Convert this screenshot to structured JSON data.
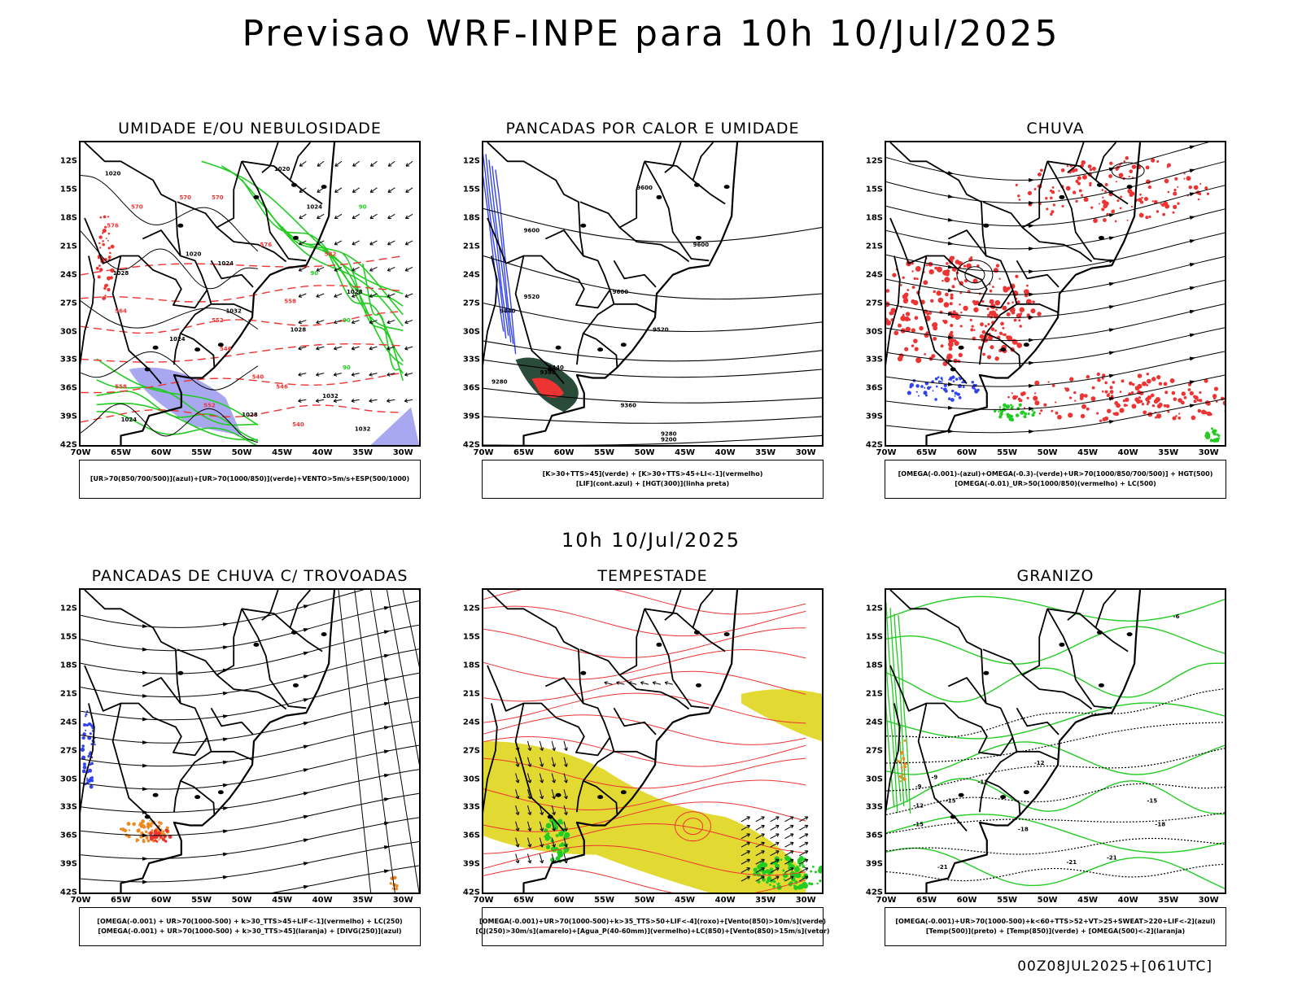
{
  "header": {
    "title": "Previsao WRF-INPE  para 10h 10/Jul/2025"
  },
  "middle": {
    "title": "10h 10/Jul/2025"
  },
  "footer": {
    "stamp": "00Z08JUL2025+[061UTC]"
  },
  "axes": {
    "lat_labels": [
      "12S",
      "15S",
      "18S",
      "21S",
      "24S",
      "27S",
      "30S",
      "33S",
      "36S",
      "39S",
      "42S"
    ],
    "lon_labels": [
      "70W",
      "65W",
      "60W",
      "55W",
      "50W",
      "45W",
      "40W",
      "35W",
      "30W"
    ]
  },
  "colors": {
    "green": "#22cc22",
    "red": "#ee3333",
    "blue": "#3344ee",
    "light_blue": "#9999ee",
    "yellow": "#e2d932",
    "dark_green": "#2a4a3a",
    "orange": "#ee8822",
    "black": "#000000"
  },
  "panels": [
    {
      "id": "umidade",
      "title": "UMIDADE E/OU NEBULOSIDADE",
      "legend": [
        "[UR>70(850/700/500)](azul)+[UR>70(1000/850)](verde)+VENTO>5m/s+ESP(500/1000)"
      ],
      "contour_labels": [
        "1020",
        "1020",
        "1024",
        "1020",
        "1024",
        "1028",
        "1032",
        "1028",
        "1024",
        "1032",
        "1024",
        "1028",
        "1032",
        "1028",
        "570",
        "570",
        "570",
        "576",
        "576",
        "582",
        "564",
        "558",
        "552",
        "546",
        "540",
        "540",
        "558",
        "552",
        "546",
        "90",
        "90",
        "90",
        "90"
      ]
    },
    {
      "id": "pancadas-calor",
      "title": "PANCADAS POR CALOR E UMIDADE",
      "legend": [
        "[K>30+TTS>45](verde) + [K>30+TTS>45+LI<-1](vermelho)",
        "[LIF](cont.azul) + [HGT(300)](linha preta)"
      ],
      "contour_labels": [
        "9600",
        "9600",
        "9600",
        "9600",
        "9520",
        "9440",
        "9520",
        "9440",
        "9360",
        "9360",
        "9280",
        "9280",
        "9200"
      ]
    },
    {
      "id": "chuva",
      "title": "CHUVA",
      "legend": [
        "[OMEGA(-0.001)-(azul)+OMEGA(-0.3)-(verde)+UR>70(1000/850/700/500)] + HGT(500)",
        "[OMEGA(-0.01)_UR>50(1000/850)(vermelho) + LC(500)"
      ]
    },
    {
      "id": "pancadas-trovoadas",
      "title": "PANCADAS DE CHUVA C/ TROVOADAS",
      "legend": [
        "[OMEGA(-0.001) + UR>70(1000-500) + k>30_TTS>45+LIF<-1](vermelho) + LC(250)",
        "[OMEGA(-0.001) + UR>70(1000-500) + k>30_TTS>45](laranja) + [DIVG(250)](azul)"
      ]
    },
    {
      "id": "tempestade",
      "title": "TEMPESTADE",
      "legend": [
        "[OMEGA(-0.001)+UR>70(1000-500)+k>35_TTS>50+LIF<-4](roxo)+[Vento(850)>10m/s](verde)",
        "[CJ(250)>30m/s](amarelo)+[Agua_P(40-60mm)](vermelho)+LC(850)+[Vento(850)>15m/s](vetor)"
      ]
    },
    {
      "id": "granizo",
      "title": "GRANIZO",
      "legend": [
        "[OMEGA(-0.001)+UR>70(1000-500)+k<60+TTS>52+VT>25+SWEAT>220+LIF<-2](azul)",
        "[Temp(500)](preto) + [Temp(850)](verde) + [OMEGA(500)<-2](laranja)"
      ],
      "contour_labels": [
        "-9",
        "-12",
        "-12",
        "-15",
        "-15",
        "-18",
        "-18",
        "-21",
        "-21",
        "-21",
        "-6",
        "-9",
        "-12",
        "-15"
      ]
    }
  ]
}
